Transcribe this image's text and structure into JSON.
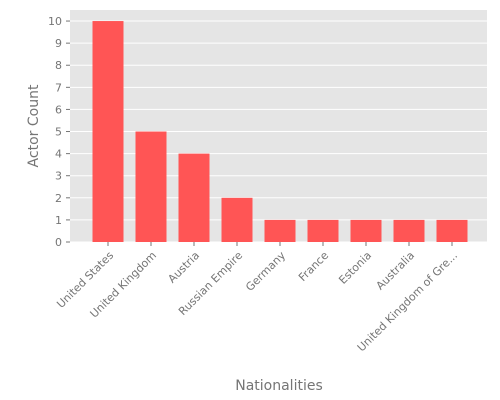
{
  "chart_data": {
    "type": "bar",
    "title": "",
    "xlabel": "Nationalities",
    "ylabel": "Actor Count",
    "categories": [
      "United States",
      "United Kingdom",
      "Austria",
      "Russian Empire",
      "Germany",
      "France",
      "Estonia",
      "Australia",
      "United Kingdom of Gre..."
    ],
    "values": [
      10,
      5,
      4,
      2,
      1,
      1,
      1,
      1,
      1
    ],
    "ylim": [
      0,
      10.5
    ],
    "yticks": [
      0,
      1,
      2,
      3,
      4,
      5,
      6,
      7,
      8,
      9,
      10
    ],
    "grid": true,
    "colors": {
      "bar": "#ff5555",
      "plot_background": "#e5e5e5",
      "grid": "#ffffff",
      "text": "#757575"
    }
  }
}
